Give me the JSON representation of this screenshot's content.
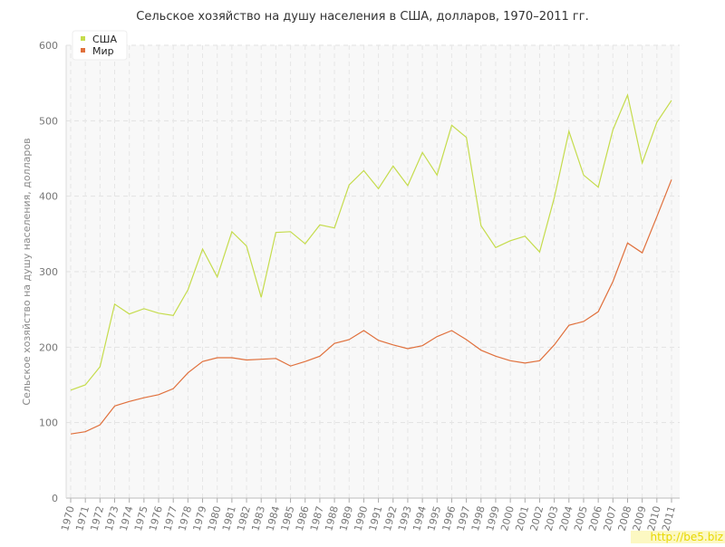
{
  "chart_data": {
    "type": "line",
    "title": "Сельское хозяйство на душу населения в США, долларов, 1970–2011 гг.",
    "y_label": "Сельское хозяйство на душу населения, долларов",
    "x": [
      1970,
      1971,
      1972,
      1973,
      1974,
      1975,
      1976,
      1977,
      1978,
      1979,
      1980,
      1981,
      1982,
      1983,
      1984,
      1985,
      1986,
      1987,
      1988,
      1989,
      1990,
      1991,
      1992,
      1993,
      1994,
      1995,
      1996,
      1997,
      1998,
      1999,
      2000,
      2001,
      2002,
      2003,
      2004,
      2005,
      2006,
      2007,
      2008,
      2009,
      2010,
      2011
    ],
    "xlim": [
      1970,
      2011
    ],
    "series": [
      {
        "name": "США",
        "color": "#c5dc4c",
        "values": [
          143,
          150,
          174,
          257,
          244,
          251,
          245,
          242,
          276,
          330,
          293,
          353,
          334,
          266,
          352,
          353,
          337,
          362,
          358,
          415,
          434,
          410,
          440,
          414,
          458,
          428,
          494,
          478,
          361,
          332,
          341,
          347,
          326,
          398,
          486,
          428,
          412,
          488,
          534,
          444,
          498,
          527
        ]
      },
      {
        "name": "Мир",
        "color": "#e0703c",
        "values": [
          85,
          88,
          97,
          122,
          128,
          133,
          137,
          145,
          166,
          181,
          186,
          186,
          183,
          184,
          185,
          175,
          181,
          188,
          205,
          210,
          222,
          209,
          203,
          198,
          202,
          214,
          222,
          210,
          196,
          188,
          182,
          179,
          182,
          203,
          229,
          234,
          247,
          287,
          338,
          325,
          373,
          422
        ]
      }
    ],
    "ylim": [
      0,
      600
    ],
    "yticks": [
      0,
      100,
      200,
      300,
      400,
      500,
      600
    ],
    "grid": true,
    "legend": "top-left",
    "watermark": "http://be5.biz"
  }
}
